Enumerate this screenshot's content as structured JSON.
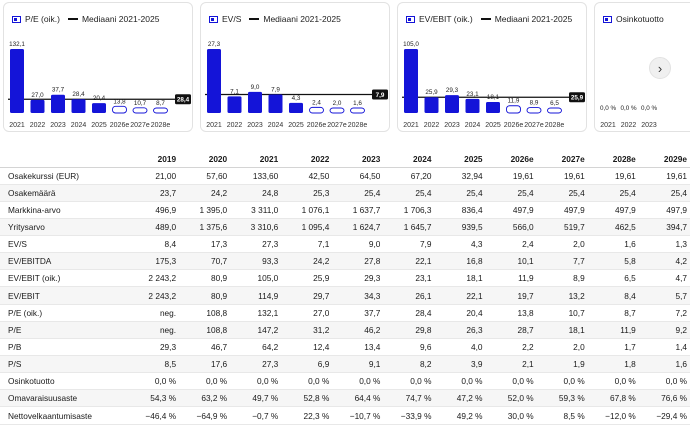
{
  "colors": {
    "bar": "#1414d8",
    "median": "#111111",
    "estimate_fill": "#ffffff"
  },
  "cards": [
    {
      "legend": "P/E (oik.)",
      "median_legend": "Mediaani 2021-2025",
      "categories": [
        "2021",
        "2022",
        "2023",
        "2024",
        "2025",
        "2026e",
        "2027e",
        "2028e"
      ],
      "labels": [
        "132,1",
        "27,0",
        "37,7",
        "28,4",
        "20,4",
        "13,8",
        "10,7",
        "8,7"
      ],
      "values": [
        132.1,
        27.0,
        37.7,
        28.4,
        20.4,
        13.8,
        10.7,
        8.7
      ],
      "estimate": [
        false,
        false,
        false,
        false,
        false,
        true,
        true,
        true
      ],
      "median": 28.4,
      "median_label": "28,4"
    },
    {
      "legend": "EV/S",
      "median_legend": "Mediaani 2021-2025",
      "categories": [
        "2021",
        "2022",
        "2023",
        "2024",
        "2025",
        "2026e",
        "2027e",
        "2028e"
      ],
      "labels": [
        "27,3",
        "7,1",
        "9,0",
        "7,9",
        "4,3",
        "2,4",
        "2,0",
        "1,6"
      ],
      "values": [
        27.3,
        7.1,
        9.0,
        7.9,
        4.3,
        2.4,
        2.0,
        1.6
      ],
      "estimate": [
        false,
        false,
        false,
        false,
        false,
        true,
        true,
        true
      ],
      "median": 7.9,
      "median_label": "7,9"
    },
    {
      "legend": "EV/EBIT (oik.)",
      "median_legend": "Mediaani 2021-2025",
      "categories": [
        "2021",
        "2022",
        "2023",
        "2024",
        "2025",
        "2026e",
        "2027e",
        "2028e"
      ],
      "labels": [
        "105,0",
        "25,9",
        "29,3",
        "23,1",
        "18,1",
        "11,9",
        "8,9",
        "6,5"
      ],
      "values": [
        105.0,
        25.9,
        29.3,
        23.1,
        18.1,
        11.9,
        8.9,
        6.5
      ],
      "estimate": [
        false,
        false,
        false,
        false,
        false,
        true,
        true,
        true
      ],
      "median": 25.9,
      "median_label": "25,9"
    },
    {
      "legend": "Osinkotuotto",
      "median_legend": "",
      "categories": [
        "2021",
        "2022",
        "2023"
      ],
      "labels": [
        "0,0 %",
        "0,0 %",
        "0,0 %"
      ],
      "values": [
        0,
        0,
        0
      ],
      "estimate": [
        false,
        false,
        false
      ],
      "median": null,
      "median_label": ""
    }
  ],
  "next_icon": "chevron-right-icon",
  "next_glyph": "›",
  "table": {
    "header_label": "",
    "columns": [
      "2019",
      "2020",
      "2021",
      "2022",
      "2023",
      "2024",
      "2025",
      "2026e",
      "2027e",
      "2028e",
      "2029e"
    ],
    "rows": [
      {
        "label": "Osakekurssi (EUR)",
        "values": [
          "21,00",
          "57,60",
          "133,60",
          "42,50",
          "64,50",
          "67,20",
          "32,94",
          "19,61",
          "19,61",
          "19,61",
          "19,61"
        ]
      },
      {
        "label": "Osakemäärä",
        "values": [
          "23,7",
          "24,2",
          "24,8",
          "25,3",
          "25,4",
          "25,4",
          "25,4",
          "25,4",
          "25,4",
          "25,4",
          "25,4"
        ]
      },
      {
        "label": "Markkina-arvo",
        "values": [
          "496,9",
          "1 395,0",
          "3 311,0",
          "1 076,1",
          "1 637,7",
          "1 706,3",
          "836,4",
          "497,9",
          "497,9",
          "497,9",
          "497,9"
        ]
      },
      {
        "label": "Yritysarvo",
        "values": [
          "489,0",
          "1 375,6",
          "3 310,6",
          "1 095,4",
          "1 624,7",
          "1 645,7",
          "939,5",
          "566,0",
          "519,7",
          "462,5",
          "394,7"
        ]
      },
      {
        "label": "EV/S",
        "values": [
          "8,4",
          "17,3",
          "27,3",
          "7,1",
          "9,0",
          "7,9",
          "4,3",
          "2,4",
          "2,0",
          "1,6",
          "1,3"
        ]
      },
      {
        "label": "EV/EBITDA",
        "values": [
          "175,3",
          "70,7",
          "93,3",
          "24,2",
          "27,8",
          "22,1",
          "16,8",
          "10,1",
          "7,7",
          "5,8",
          "4,2"
        ]
      },
      {
        "label": "EV/EBIT (oik.)",
        "values": [
          "2 243,2",
          "80,9",
          "105,0",
          "25,9",
          "29,3",
          "23,1",
          "18,1",
          "11,9",
          "8,9",
          "6,5",
          "4,7"
        ]
      },
      {
        "label": "EV/EBIT",
        "values": [
          "2 243,2",
          "80,9",
          "114,9",
          "29,7",
          "34,3",
          "26,1",
          "22,1",
          "19,7",
          "13,2",
          "8,4",
          "5,7"
        ]
      },
      {
        "label": "P/E (oik.)",
        "values": [
          "neg.",
          "108,8",
          "132,1",
          "27,0",
          "37,7",
          "28,4",
          "20,4",
          "13,8",
          "10,7",
          "8,7",
          "7,2"
        ]
      },
      {
        "label": "P/E",
        "values": [
          "neg.",
          "108,8",
          "147,2",
          "31,2",
          "46,2",
          "29,8",
          "26,3",
          "28,7",
          "18,1",
          "11,9",
          "9,2"
        ]
      },
      {
        "label": "P/B",
        "values": [
          "29,3",
          "46,7",
          "64,2",
          "12,4",
          "13,4",
          "9,6",
          "4,0",
          "2,2",
          "2,0",
          "1,7",
          "1,4"
        ]
      },
      {
        "label": "P/S",
        "values": [
          "8,5",
          "17,6",
          "27,3",
          "6,9",
          "9,1",
          "8,2",
          "3,9",
          "2,1",
          "1,9",
          "1,8",
          "1,6"
        ]
      },
      {
        "label": "Osinkotuotto",
        "values": [
          "0,0 %",
          "0,0 %",
          "0,0 %",
          "0,0 %",
          "0,0 %",
          "0,0 %",
          "0,0 %",
          "0,0 %",
          "0,0 %",
          "0,0 %",
          "0,0 %"
        ]
      },
      {
        "label": "Omavaraisuusaste",
        "values": [
          "54,3 %",
          "63,2 %",
          "49,7 %",
          "52,8 %",
          "64,4 %",
          "74,7 %",
          "47,2 %",
          "52,0 %",
          "59,3 %",
          "67,8 %",
          "76,6 %"
        ]
      },
      {
        "label": "Nettovelkaantumisaste",
        "values": [
          "−46,4 %",
          "−64,9 %",
          "−0,7 %",
          "22,3 %",
          "−10,7 %",
          "−33,9 %",
          "49,2 %",
          "30,0 %",
          "8,5 %",
          "−12,0 %",
          "−29,4 %"
        ]
      }
    ]
  }
}
